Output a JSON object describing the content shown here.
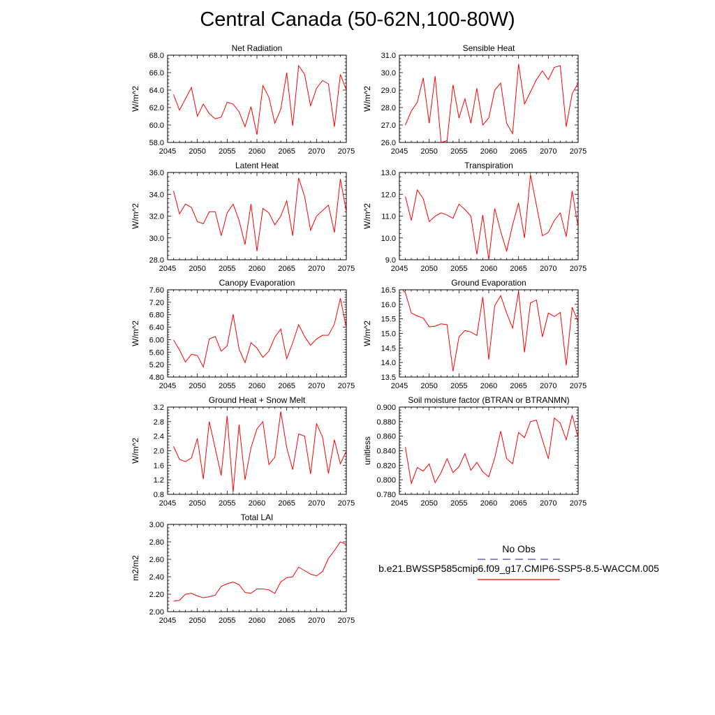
{
  "title": "Central Canada (50-62N,100-80W)",
  "legend": {
    "obs_label": "No Obs",
    "obs_color": "#4a4a9a",
    "model_label": "b.e21.BWSSP585cmip6.f09_g17.CMIP6-SSP5-8.5-WACCM.005",
    "model_color": "#ff0000"
  },
  "chart_data": [
    {
      "type": "line",
      "title": "Net Radiation",
      "ylabel": "W/m^2",
      "xlabel": "",
      "xlim": [
        2045,
        2075
      ],
      "ylim": [
        58.0,
        68.0
      ],
      "xticks": [
        2045,
        2050,
        2055,
        2060,
        2065,
        2070,
        2075
      ],
      "yticks": [
        "58.0",
        "60.0",
        "62.0",
        "64.0",
        "66.0",
        "68.0"
      ],
      "x": [
        2046,
        2047,
        2048,
        2049,
        2050,
        2051,
        2052,
        2053,
        2054,
        2055,
        2056,
        2057,
        2058,
        2059,
        2060,
        2061,
        2062,
        2063,
        2064,
        2065,
        2066,
        2067,
        2068,
        2069,
        2070,
        2071,
        2072,
        2073,
        2074,
        2075
      ],
      "values": [
        63.5,
        61.7,
        63.0,
        64.3,
        61.0,
        62.4,
        61.3,
        60.7,
        60.9,
        62.6,
        62.4,
        61.5,
        59.8,
        62.1,
        58.9,
        64.5,
        63.2,
        60.2,
        61.8,
        66.0,
        59.9,
        66.8,
        65.8,
        62.2,
        64.2,
        65.1,
        64.7,
        59.8,
        65.8,
        64.0
      ]
    },
    {
      "type": "line",
      "title": "Sensible Heat",
      "ylabel": "W/m^2",
      "xlabel": "",
      "xlim": [
        2045,
        2075
      ],
      "ylim": [
        26.0,
        31.0
      ],
      "xticks": [
        2045,
        2050,
        2055,
        2060,
        2065,
        2070,
        2075
      ],
      "yticks": [
        "26.0",
        "27.0",
        "28.0",
        "29.0",
        "30.0",
        "31.0"
      ],
      "x": [
        2046,
        2047,
        2048,
        2049,
        2050,
        2051,
        2052,
        2053,
        2054,
        2055,
        2056,
        2057,
        2058,
        2059,
        2060,
        2061,
        2062,
        2063,
        2064,
        2065,
        2066,
        2067,
        2068,
        2069,
        2070,
        2071,
        2072,
        2073,
        2074,
        2075
      ],
      "values": [
        27.0,
        27.8,
        28.3,
        29.7,
        27.1,
        29.8,
        26.0,
        26.1,
        29.3,
        27.4,
        28.5,
        27.1,
        29.1,
        27.0,
        27.4,
        29.0,
        29.4,
        27.1,
        26.5,
        30.5,
        28.2,
        28.9,
        29.6,
        30.1,
        29.6,
        30.3,
        30.4,
        26.9,
        28.8,
        29.4
      ]
    },
    {
      "type": "line",
      "title": "Latent Heat",
      "ylabel": "W/m^2",
      "xlabel": "",
      "xlim": [
        2045,
        2075
      ],
      "ylim": [
        28.0,
        36.0
      ],
      "xticks": [
        2045,
        2050,
        2055,
        2060,
        2065,
        2070,
        2075
      ],
      "yticks": [
        "28.0",
        "30.0",
        "32.0",
        "34.0",
        "36.0"
      ],
      "x": [
        2046,
        2047,
        2048,
        2049,
        2050,
        2051,
        2052,
        2053,
        2054,
        2055,
        2056,
        2057,
        2058,
        2059,
        2060,
        2061,
        2062,
        2063,
        2064,
        2065,
        2066,
        2067,
        2068,
        2069,
        2070,
        2071,
        2072,
        2073,
        2074,
        2075
      ],
      "values": [
        34.3,
        32.2,
        33.1,
        32.8,
        31.5,
        31.3,
        32.4,
        32.4,
        30.2,
        32.3,
        33.1,
        31.6,
        29.4,
        33.1,
        28.8,
        32.7,
        32.3,
        31.2,
        32.0,
        33.4,
        30.2,
        35.5,
        33.8,
        30.7,
        32.0,
        32.5,
        33.0,
        30.5,
        35.4,
        32.4
      ]
    },
    {
      "type": "line",
      "title": "Transpiration",
      "ylabel": "W/m^2",
      "xlabel": "",
      "xlim": [
        2045,
        2075
      ],
      "ylim": [
        9.0,
        13.0
      ],
      "xticks": [
        2045,
        2050,
        2055,
        2060,
        2065,
        2070,
        2075
      ],
      "yticks": [
        "9.0",
        "10.0",
        "11.0",
        "12.0",
        "13.0"
      ],
      "x": [
        2046,
        2047,
        2048,
        2049,
        2050,
        2051,
        2052,
        2053,
        2054,
        2055,
        2056,
        2057,
        2058,
        2059,
        2060,
        2061,
        2062,
        2063,
        2064,
        2065,
        2066,
        2067,
        2068,
        2069,
        2070,
        2071,
        2072,
        2073,
        2074,
        2075
      ],
      "values": [
        11.9,
        10.8,
        12.2,
        11.8,
        10.75,
        11.0,
        11.15,
        11.05,
        10.9,
        11.55,
        11.3,
        11.0,
        9.25,
        11.05,
        9.0,
        11.35,
        10.3,
        9.4,
        10.6,
        11.6,
        10.0,
        12.9,
        11.5,
        10.1,
        10.25,
        10.8,
        11.15,
        10.05,
        12.15,
        10.5
      ]
    },
    {
      "type": "line",
      "title": "Canopy Evaporation",
      "ylabel": "W/m^2",
      "xlabel": "",
      "xlim": [
        2045,
        2075
      ],
      "ylim": [
        4.8,
        7.6
      ],
      "xticks": [
        2045,
        2050,
        2055,
        2060,
        2065,
        2070,
        2075
      ],
      "yticks": [
        "4.80",
        "5.20",
        "5.60",
        "6.00",
        "6.40",
        "6.80",
        "7.20",
        "7.60"
      ],
      "x": [
        2046,
        2047,
        2048,
        2049,
        2050,
        2051,
        2052,
        2053,
        2054,
        2055,
        2056,
        2057,
        2058,
        2059,
        2060,
        2061,
        2062,
        2063,
        2064,
        2065,
        2066,
        2067,
        2068,
        2069,
        2070,
        2071,
        2072,
        2073,
        2074,
        2075
      ],
      "values": [
        5.99,
        5.67,
        5.28,
        5.53,
        5.49,
        5.12,
        6.02,
        6.1,
        5.63,
        5.8,
        6.81,
        5.7,
        5.26,
        5.9,
        5.73,
        5.43,
        5.63,
        6.08,
        6.34,
        5.39,
        5.9,
        6.48,
        6.1,
        5.82,
        6.02,
        6.14,
        6.14,
        6.5,
        7.33,
        6.38
      ]
    },
    {
      "type": "line",
      "title": "Ground Evaporation",
      "ylabel": "W/m^2",
      "xlabel": "",
      "xlim": [
        2045,
        2075
      ],
      "ylim": [
        13.5,
        16.5
      ],
      "xticks": [
        2045,
        2050,
        2055,
        2060,
        2065,
        2070,
        2075
      ],
      "yticks": [
        "13.5",
        "14.0",
        "14.5",
        "15.0",
        "15.5",
        "16.0",
        "16.5"
      ],
      "x": [
        2045,
        2046,
        2047,
        2048,
        2049,
        2050,
        2051,
        2052,
        2053,
        2054,
        2055,
        2056,
        2057,
        2058,
        2059,
        2060,
        2061,
        2062,
        2063,
        2064,
        2065,
        2066,
        2067,
        2068,
        2069,
        2070,
        2071,
        2072,
        2073,
        2074,
        2075
      ],
      "values": [
        16.6,
        16.4,
        15.7,
        15.6,
        15.53,
        15.23,
        15.25,
        15.33,
        15.3,
        13.7,
        14.88,
        15.1,
        15.05,
        14.93,
        16.25,
        14.1,
        15.95,
        16.3,
        15.7,
        15.18,
        16.45,
        14.35,
        16.05,
        16.15,
        14.88,
        15.7,
        15.58,
        15.72,
        13.9,
        15.9,
        15.4
      ]
    },
    {
      "type": "line",
      "title": "Ground Heat + Snow Melt",
      "ylabel": "W/m^2",
      "xlabel": "",
      "xlim": [
        2045,
        2075
      ],
      "ylim": [
        0.8,
        3.2
      ],
      "xticks": [
        2045,
        2050,
        2055,
        2060,
        2065,
        2070,
        2075
      ],
      "yticks": [
        "0.8",
        "1.2",
        "1.6",
        "2.0",
        "2.4",
        "2.8",
        "3.2"
      ],
      "x": [
        2046,
        2047,
        2048,
        2049,
        2050,
        2051,
        2052,
        2053,
        2054,
        2055,
        2056,
        2057,
        2058,
        2059,
        2060,
        2061,
        2062,
        2063,
        2064,
        2065,
        2066,
        2067,
        2068,
        2069,
        2070,
        2071,
        2072,
        2073,
        2074,
        2075
      ],
      "values": [
        2.12,
        1.76,
        1.7,
        1.8,
        2.34,
        1.22,
        2.8,
        2.06,
        1.32,
        2.96,
        0.86,
        2.72,
        1.2,
        2.08,
        2.6,
        2.8,
        1.62,
        1.82,
        3.08,
        2.08,
        1.48,
        2.46,
        2.4,
        1.36,
        2.74,
        2.38,
        1.37,
        2.3,
        1.64,
        1.99
      ]
    },
    {
      "type": "line",
      "title": "Soil moisture factor (BTRAN or BTRANMN)",
      "ylabel": "unitless",
      "xlabel": "",
      "xlim": [
        2045,
        2075
      ],
      "ylim": [
        0.78,
        0.9
      ],
      "xticks": [
        2045,
        2050,
        2055,
        2060,
        2065,
        2070,
        2075
      ],
      "yticks": [
        "0.780",
        "0.800",
        "0.820",
        "0.840",
        "0.860",
        "0.880",
        "0.900"
      ],
      "x": [
        2046,
        2047,
        2048,
        2049,
        2050,
        2051,
        2052,
        2053,
        2054,
        2055,
        2056,
        2057,
        2058,
        2059,
        2060,
        2061,
        2062,
        2063,
        2064,
        2065,
        2066,
        2067,
        2068,
        2069,
        2070,
        2071,
        2072,
        2073,
        2074,
        2075
      ],
      "values": [
        0.845,
        0.795,
        0.817,
        0.812,
        0.822,
        0.796,
        0.81,
        0.829,
        0.81,
        0.818,
        0.836,
        0.813,
        0.824,
        0.811,
        0.804,
        0.83,
        0.867,
        0.829,
        0.822,
        0.865,
        0.858,
        0.88,
        0.882,
        0.855,
        0.829,
        0.885,
        0.878,
        0.855,
        0.889,
        0.858
      ]
    },
    {
      "type": "line",
      "title": "Total LAI",
      "ylabel": "m2/m2",
      "xlabel": "",
      "xlim": [
        2045,
        2075
      ],
      "ylim": [
        2.0,
        3.0
      ],
      "xticks": [
        2045,
        2050,
        2055,
        2060,
        2065,
        2070,
        2075
      ],
      "yticks": [
        "2.00",
        "2.20",
        "2.40",
        "2.60",
        "2.80",
        "3.00"
      ],
      "x": [
        2046,
        2047,
        2048,
        2049,
        2050,
        2051,
        2052,
        2053,
        2054,
        2055,
        2056,
        2057,
        2058,
        2059,
        2060,
        2061,
        2062,
        2063,
        2064,
        2065,
        2066,
        2067,
        2068,
        2069,
        2070,
        2071,
        2072,
        2073,
        2074,
        2075
      ],
      "values": [
        2.12,
        2.13,
        2.2,
        2.21,
        2.18,
        2.16,
        2.17,
        2.19,
        2.29,
        2.32,
        2.34,
        2.31,
        2.22,
        2.21,
        2.26,
        2.26,
        2.25,
        2.21,
        2.34,
        2.39,
        2.4,
        2.51,
        2.47,
        2.43,
        2.41,
        2.46,
        2.61,
        2.7,
        2.8,
        2.77
      ]
    }
  ]
}
